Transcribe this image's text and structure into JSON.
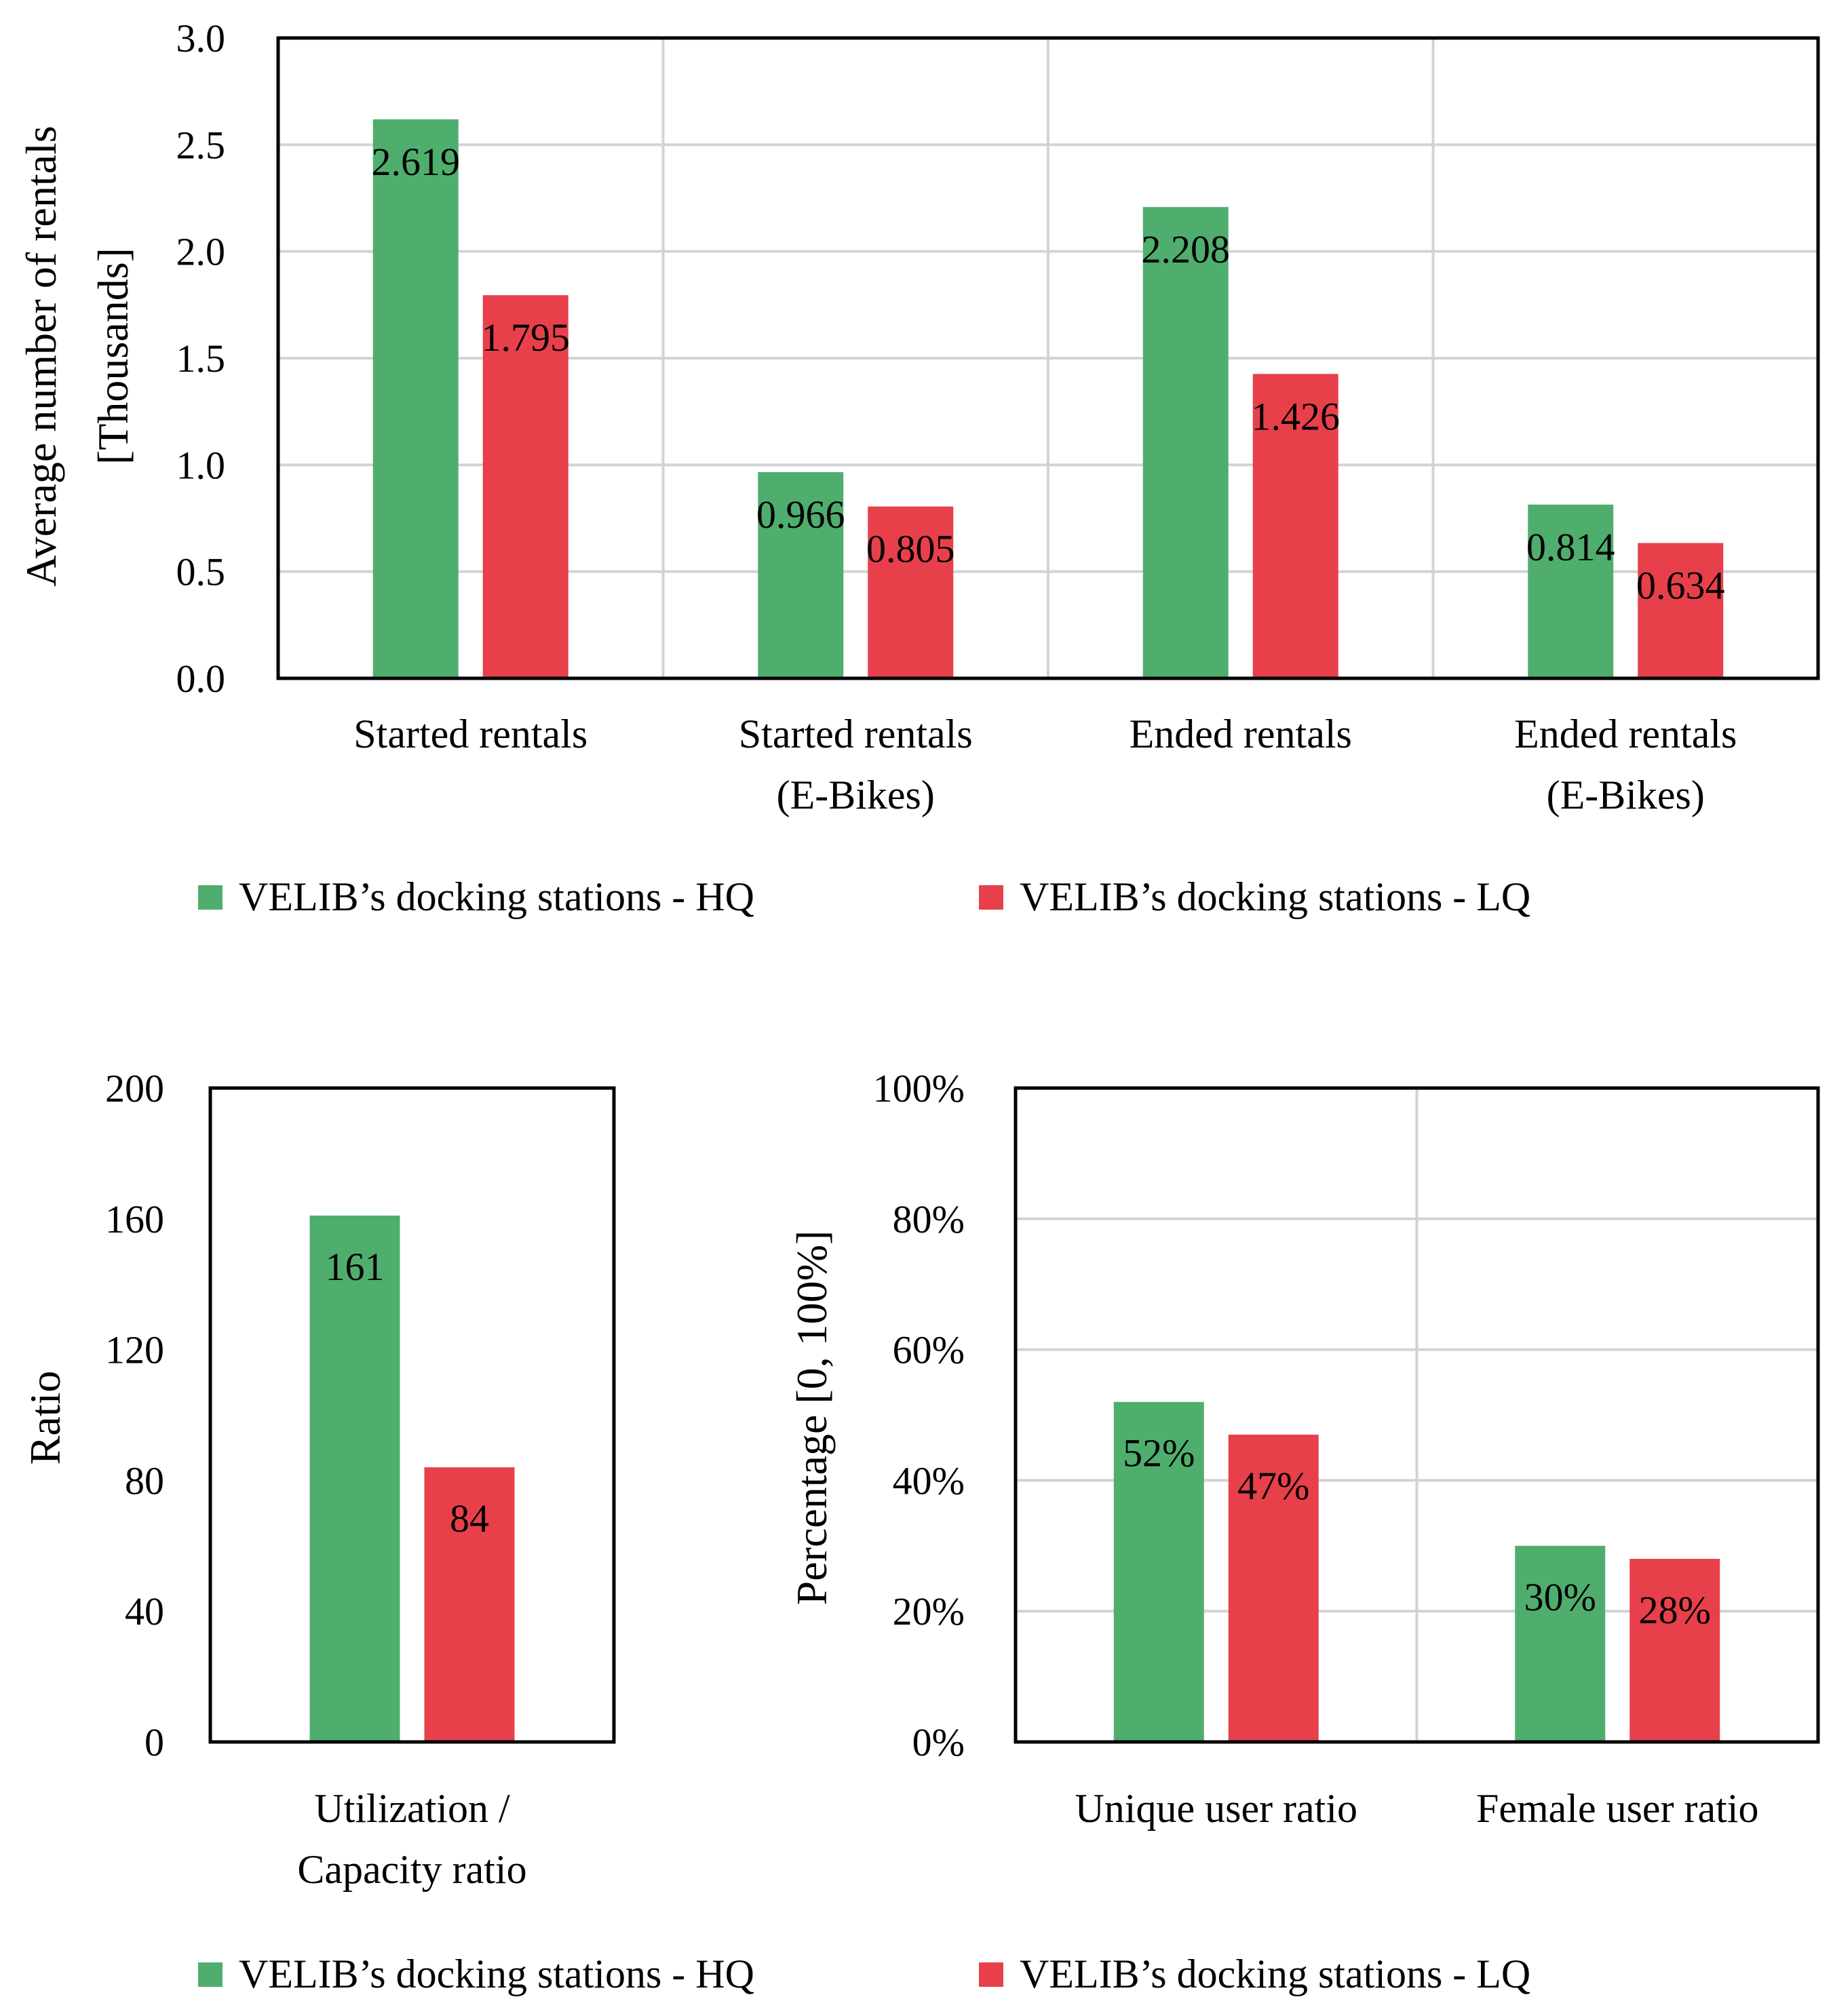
{
  "colors": {
    "hq": "#4fae6e",
    "lq": "#e8404b",
    "grid": "#d3d3d3",
    "axis": "#000000"
  },
  "legend": {
    "hq_label": "VELIB’s docking stations - HQ",
    "lq_label": "VELIB’s docking stations - LQ"
  },
  "chart_data": [
    {
      "type": "bar",
      "ylabel_line1": "Average number of rentals",
      "ylabel_line2": "[Thousands]",
      "ylim": [
        0,
        3.0
      ],
      "yticks": [
        "0.0",
        "0.5",
        "1.0",
        "1.5",
        "2.0",
        "2.5",
        "3.0"
      ],
      "grid": true,
      "legend_position": "bottom",
      "categories": [
        [
          "Started rentals"
        ],
        [
          "Started rentals",
          "(E-Bikes)"
        ],
        [
          "Ended rentals"
        ],
        [
          "Ended rentals",
          "(E-Bikes)"
        ]
      ],
      "series": [
        {
          "name": "VELIB’s docking stations - HQ",
          "values": [
            2.619,
            0.966,
            2.208,
            0.814
          ],
          "labels": [
            "2.619",
            "0.966",
            "2.208",
            "0.814"
          ]
        },
        {
          "name": "VELIB’s docking stations - LQ",
          "values": [
            1.795,
            0.805,
            1.426,
            0.634
          ],
          "labels": [
            "1.795",
            "0.805",
            "1.426",
            "0.634"
          ]
        }
      ]
    },
    {
      "type": "bar",
      "ylabel": "Ratio",
      "ylim": [
        0,
        200
      ],
      "yticks": [
        "0",
        "40",
        "80",
        "120",
        "160",
        "200"
      ],
      "grid": false,
      "legend_position": "bottom",
      "categories": [
        [
          "Utilization /",
          "Capacity ratio"
        ]
      ],
      "series": [
        {
          "name": "VELIB’s docking stations - HQ",
          "values": [
            161
          ],
          "labels": [
            "161"
          ]
        },
        {
          "name": "VELIB’s docking stations - LQ",
          "values": [
            84
          ],
          "labels": [
            "84"
          ]
        }
      ]
    },
    {
      "type": "bar",
      "ylabel": "Percentage [0, 100%]",
      "ylim": [
        0,
        100
      ],
      "yticks": [
        "0%",
        "20%",
        "40%",
        "60%",
        "80%",
        "100%"
      ],
      "grid": true,
      "legend_position": "bottom",
      "categories": [
        [
          "Unique user ratio"
        ],
        [
          "Female user ratio"
        ]
      ],
      "series": [
        {
          "name": "VELIB’s docking stations - HQ",
          "values": [
            52,
            30
          ],
          "labels": [
            "52%",
            "30%"
          ]
        },
        {
          "name": "VELIB’s docking stations - LQ",
          "values": [
            47,
            28
          ],
          "labels": [
            "47%",
            "28%"
          ]
        }
      ]
    }
  ]
}
